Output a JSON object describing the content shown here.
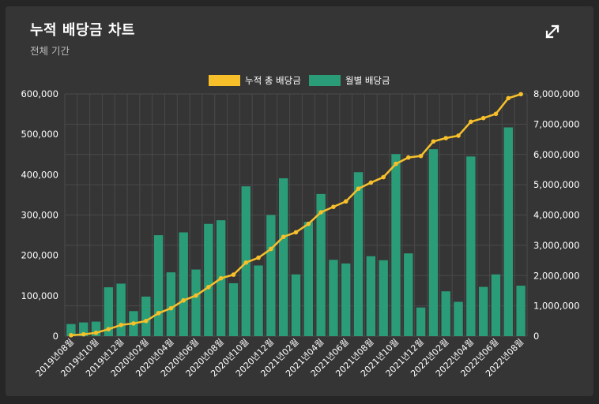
{
  "header": {
    "title": "누적 배당금 차트",
    "subtitle": "전체 기간"
  },
  "icons": {
    "expand": "expand-icon"
  },
  "colors": {
    "cumulative": "#f7c02b",
    "monthly": "#2a9d78",
    "axis_text": "#ffffff",
    "grid": "#4a4a4a"
  },
  "chart_data": {
    "type": "bar",
    "legend_position": "top",
    "grid": true,
    "categories": [
      "2019년08월",
      "2019년09월",
      "2019년10월",
      "2019년11월",
      "2019년12월",
      "2020년01월",
      "2020년02월",
      "2020년03월",
      "2020년04월",
      "2020년05월",
      "2020년06월",
      "2020년07월",
      "2020년08월",
      "2020년09월",
      "2020년10월",
      "2020년11월",
      "2020년12월",
      "2021년01월",
      "2021년02월",
      "2021년03월",
      "2021년04월",
      "2021년05월",
      "2021년06월",
      "2021년07월",
      "2021년08월",
      "2021년09월",
      "2021년10월",
      "2021년11월",
      "2021년12월",
      "2022년01월",
      "2022년02월",
      "2022년03월",
      "2022년04월",
      "2022년05월",
      "2022년06월",
      "2022년07월",
      "2022년08월"
    ],
    "tick_labels": [
      "2019년08월",
      "2019년10월",
      "2019년12월",
      "2020년02월",
      "2020년04월",
      "2020년06월",
      "2020년08월",
      "2020년10월",
      "2020년12월",
      "2021년02월",
      "2021년04월",
      "2021년06월",
      "2021년08월",
      "2021년10월",
      "2021년12월",
      "2022년02월",
      "2022년04월",
      "2022년06월",
      "2022년08월"
    ],
    "series": [
      {
        "name": "누적 총 배당금",
        "type": "line",
        "axis": "right",
        "values": [
          30000,
          60000,
          110000,
          230000,
          370000,
          420000,
          500000,
          760000,
          920000,
          1180000,
          1340000,
          1620000,
          1910000,
          2030000,
          2430000,
          2590000,
          2880000,
          3280000,
          3430000,
          3710000,
          4090000,
          4270000,
          4450000,
          4870000,
          5070000,
          5250000,
          5690000,
          5900000,
          5950000,
          6430000,
          6540000,
          6620000,
          7080000,
          7200000,
          7340000,
          7860000,
          7990000
        ]
      },
      {
        "name": "월별 배당금",
        "type": "bar",
        "axis": "left",
        "values": [
          30000,
          34000,
          36000,
          121000,
          130000,
          62000,
          98000,
          250000,
          158000,
          257000,
          165000,
          278000,
          287000,
          131000,
          371000,
          175000,
          300000,
          391000,
          153000,
          283000,
          352000,
          189000,
          180000,
          406000,
          198000,
          188000,
          451000,
          205000,
          71000,
          463000,
          111000,
          85000,
          445000,
          122000,
          153000,
          517000,
          125000
        ]
      }
    ],
    "left_ticks": [
      "0",
      "100,000",
      "200,000",
      "300,000",
      "400,000",
      "500,000",
      "600,000"
    ],
    "right_ticks": [
      "0",
      "1,000,000",
      "2,000,000",
      "3,000,000",
      "4,000,000",
      "5,000,000",
      "6,000,000",
      "7,000,000",
      "8,000,000"
    ],
    "ylim_left": [
      0,
      600000
    ],
    "ylim_right": [
      0,
      8000000
    ]
  }
}
